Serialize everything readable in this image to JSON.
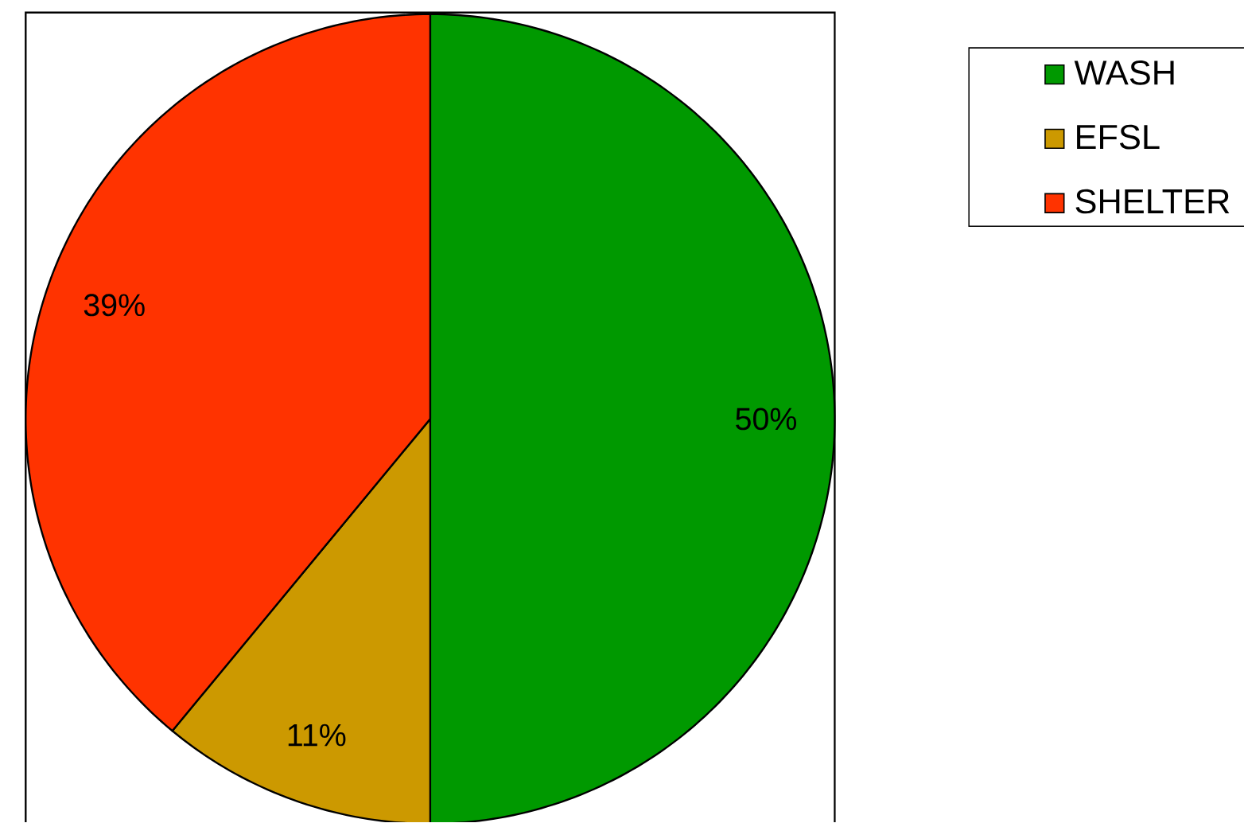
{
  "chart_data": {
    "type": "pie",
    "categories": [
      "WASH",
      "EFSL",
      "SHELTER"
    ],
    "values": [
      50,
      11,
      39
    ],
    "colors": [
      "#009900",
      "#cc9900",
      "#ff3300"
    ],
    "value_labels": [
      "50%",
      "11%",
      "39%"
    ],
    "legend": "top right"
  }
}
